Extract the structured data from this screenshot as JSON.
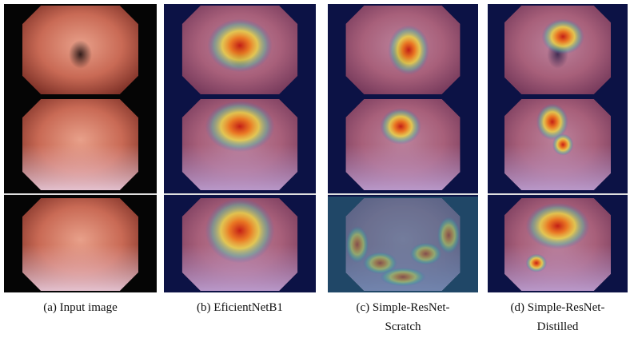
{
  "panels": [
    {
      "caption": [
        "(a) Input image"
      ]
    },
    {
      "caption": [
        "(b) EficientNetB1"
      ]
    },
    {
      "caption": [
        "(c) Simple-ResNet-",
        "Scratch"
      ]
    },
    {
      "caption": [
        "(d) Simple-ResNet-",
        "Distilled"
      ]
    }
  ]
}
